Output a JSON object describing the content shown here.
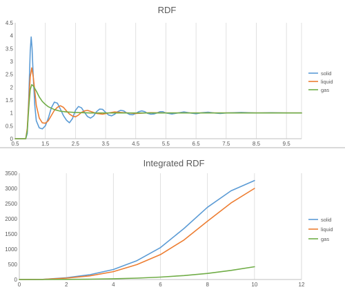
{
  "chart_data": [
    {
      "type": "line",
      "title": "RDF",
      "xlabel": "",
      "ylabel": "",
      "xlim": [
        0.5,
        10
      ],
      "ylim": [
        0,
        4.5
      ],
      "xticks": [
        "0.5",
        "1.5",
        "2.5",
        "3.5",
        "4.5",
        "5.5",
        "6.5",
        "7.5",
        "8.5",
        "9.5"
      ],
      "yticks": [
        "0",
        "0.5",
        "1",
        "1.5",
        "2",
        "2.5",
        "3",
        "3.5",
        "4",
        "4.5"
      ],
      "grid": "vertical",
      "legend": "right",
      "series": [
        {
          "name": "solid",
          "color": "#5b9bd5",
          "x": [
            0.5,
            0.85,
            0.9,
            0.95,
            1.0,
            1.03,
            1.06,
            1.1,
            1.15,
            1.2,
            1.3,
            1.4,
            1.5,
            1.6,
            1.7,
            1.8,
            1.9,
            2.0,
            2.1,
            2.2,
            2.3,
            2.4,
            2.5,
            2.6,
            2.7,
            2.8,
            2.9,
            3.0,
            3.1,
            3.2,
            3.3,
            3.4,
            3.5,
            3.6,
            3.7,
            3.8,
            3.9,
            4.0,
            4.1,
            4.2,
            4.3,
            4.4,
            4.5,
            4.6,
            4.7,
            4.8,
            4.9,
            5.0,
            5.1,
            5.2,
            5.3,
            5.4,
            5.5,
            5.7,
            5.9,
            6.1,
            6.3,
            6.5,
            6.7,
            6.9,
            7.1,
            7.3,
            7.5,
            8.0,
            8.5,
            9.0,
            9.5,
            10.0
          ],
          "y": [
            0,
            0,
            0.2,
            1.6,
            3.4,
            3.95,
            3.5,
            2.4,
            1.3,
            0.7,
            0.42,
            0.38,
            0.5,
            0.8,
            1.2,
            1.42,
            1.38,
            1.15,
            0.9,
            0.72,
            0.62,
            0.78,
            1.1,
            1.25,
            1.2,
            1.02,
            0.86,
            0.8,
            0.88,
            1.05,
            1.15,
            1.14,
            1.02,
            0.92,
            0.89,
            0.95,
            1.05,
            1.1,
            1.08,
            1.0,
            0.94,
            0.93,
            0.98,
            1.05,
            1.08,
            1.05,
            0.98,
            0.95,
            0.96,
            1.0,
            1.05,
            1.05,
            1.0,
            0.96,
            1.0,
            1.04,
            1.0,
            0.97,
            1.01,
            1.03,
            1.0,
            0.98,
            1.0,
            1.02,
            1.0,
            1.01,
            1.0,
            1.0
          ]
        },
        {
          "name": "liquid",
          "color": "#ed7d31",
          "x": [
            0.5,
            0.85,
            0.9,
            0.95,
            1.0,
            1.05,
            1.1,
            1.15,
            1.2,
            1.3,
            1.4,
            1.5,
            1.6,
            1.7,
            1.8,
            1.9,
            2.0,
            2.1,
            2.2,
            2.3,
            2.4,
            2.5,
            2.6,
            2.7,
            2.8,
            2.9,
            3.0,
            3.2,
            3.4,
            3.6,
            3.8,
            4.0,
            4.5,
            5.0,
            5.5,
            6.0,
            7.0,
            8.0,
            9.0,
            10.0
          ],
          "y": [
            0,
            0,
            0.4,
            1.4,
            2.4,
            2.75,
            2.4,
            1.85,
            1.3,
            0.8,
            0.62,
            0.6,
            0.7,
            0.9,
            1.1,
            1.22,
            1.28,
            1.22,
            1.08,
            0.96,
            0.88,
            0.85,
            0.92,
            1.02,
            1.08,
            1.1,
            1.06,
            0.98,
            0.95,
            1.0,
            1.04,
            1.02,
            0.98,
            1.01,
            1.0,
            1.0,
            1.0,
            1.0,
            1.0,
            1.0
          ]
        },
        {
          "name": "gas",
          "color": "#70ad47",
          "x": [
            0.5,
            0.85,
            0.9,
            0.95,
            1.0,
            1.05,
            1.1,
            1.2,
            1.3,
            1.4,
            1.5,
            1.6,
            1.8,
            2.0,
            2.2,
            2.5,
            3.0,
            3.5,
            4.0,
            5.0,
            6.0,
            8.0,
            10.0
          ],
          "y": [
            0,
            0,
            0.3,
            1.2,
            1.9,
            2.1,
            2.05,
            1.85,
            1.62,
            1.45,
            1.33,
            1.24,
            1.13,
            1.07,
            1.04,
            1.02,
            1.0,
            1.0,
            1.0,
            1.0,
            1.0,
            1.0,
            1.0
          ]
        }
      ]
    },
    {
      "type": "line",
      "title": "Integrated RDF",
      "xlabel": "",
      "ylabel": "",
      "xlim": [
        0,
        12
      ],
      "ylim": [
        0,
        3500
      ],
      "xticks": [
        "0",
        "2",
        "4",
        "6",
        "8",
        "10",
        "12"
      ],
      "yticks": [
        "0",
        "500",
        "1000",
        "1500",
        "2000",
        "2500",
        "3000",
        "3500"
      ],
      "grid": "vertical",
      "legend": "right",
      "series": [
        {
          "name": "solid",
          "color": "#5b9bd5",
          "x": [
            0,
            1,
            2,
            3,
            4,
            5,
            6,
            7,
            8,
            9,
            10
          ],
          "y": [
            0,
            5,
            60,
            160,
            330,
            620,
            1050,
            1680,
            2380,
            2920,
            3260
          ]
        },
        {
          "name": "liquid",
          "color": "#ed7d31",
          "x": [
            0,
            1,
            2,
            3,
            4,
            5,
            6,
            7,
            8,
            9,
            10
          ],
          "y": [
            0,
            4,
            45,
            120,
            260,
            490,
            820,
            1300,
            1920,
            2520,
            3000
          ]
        },
        {
          "name": "gas",
          "color": "#70ad47",
          "x": [
            0,
            1,
            2,
            3,
            4,
            5,
            6,
            7,
            8,
            9,
            10
          ],
          "y": [
            0,
            1,
            4,
            12,
            25,
            45,
            80,
            130,
            200,
            300,
            420
          ]
        }
      ]
    }
  ]
}
